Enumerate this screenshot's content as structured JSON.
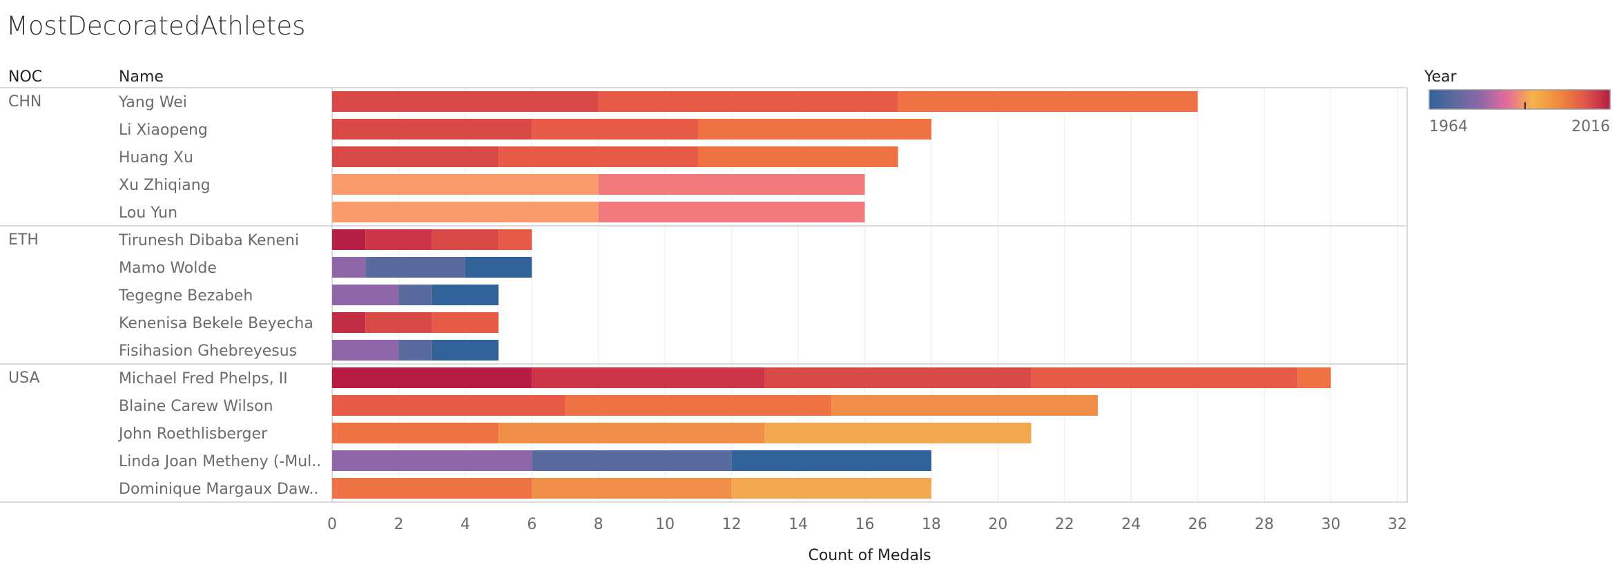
{
  "title": "MostDecoratedAthletes",
  "chart_data": {
    "type": "bar",
    "orientation": "horizontal",
    "stacked": true,
    "row_headers": [
      "NOC",
      "Name"
    ],
    "xlabel": "Count of Medals",
    "xlim": [
      0,
      32
    ],
    "xticks": [
      0,
      2,
      4,
      6,
      8,
      10,
      12,
      14,
      16,
      18,
      20,
      22,
      24,
      26,
      28,
      30,
      32
    ],
    "grid": true,
    "color_legend": {
      "title": "Year",
      "min_label": "1964",
      "max_label": "2016",
      "placement": "top-right",
      "colors": [
        "#31639a",
        "#5b6a9e",
        "#8f67a8",
        "#e56a9a",
        "#f6b34a",
        "#f08a3e",
        "#e0584a",
        "#b51c44"
      ]
    },
    "groups": [
      {
        "noc": "CHN",
        "athletes": [
          {
            "name": "Yang Wei",
            "segments": [
              {
                "value": 8,
                "color": "#d94a47"
              },
              {
                "value": 9,
                "color": "#e65a47"
              },
              {
                "value": 9,
                "color": "#ef7245"
              }
            ]
          },
          {
            "name": "Li Xiaopeng",
            "segments": [
              {
                "value": 6,
                "color": "#d94a47"
              },
              {
                "value": 5,
                "color": "#e65a47"
              },
              {
                "value": 7,
                "color": "#ef7245"
              }
            ]
          },
          {
            "name": "Huang Xu",
            "segments": [
              {
                "value": 5,
                "color": "#d94a47"
              },
              {
                "value": 6,
                "color": "#e65a47"
              },
              {
                "value": 6,
                "color": "#ef7245"
              }
            ]
          },
          {
            "name": "Xu Zhiqiang",
            "segments": [
              {
                "value": 8,
                "color": "#fb9a6b"
              },
              {
                "value": 8,
                "color": "#f27a7d"
              }
            ]
          },
          {
            "name": "Lou Yun",
            "segments": [
              {
                "value": 8,
                "color": "#fb9a6b"
              },
              {
                "value": 8,
                "color": "#f27a7d"
              }
            ]
          }
        ]
      },
      {
        "noc": "ETH",
        "athletes": [
          {
            "name": "Tirunesh Dibaba Keneni",
            "segments": [
              {
                "value": 1,
                "color": "#b81f44"
              },
              {
                "value": 2,
                "color": "#cb3546"
              },
              {
                "value": 2,
                "color": "#d94a47"
              },
              {
                "value": 1,
                "color": "#e65a47"
              }
            ]
          },
          {
            "name": "Mamo Wolde",
            "segments": [
              {
                "value": 1,
                "color": "#8f67a8"
              },
              {
                "value": 3,
                "color": "#5b6a9e"
              },
              {
                "value": 2,
                "color": "#31639a"
              }
            ]
          },
          {
            "name": "Tegegne Bezabeh",
            "segments": [
              {
                "value": 2,
                "color": "#8f67a8"
              },
              {
                "value": 1,
                "color": "#5b6a9e"
              },
              {
                "value": 2,
                "color": "#31639a"
              }
            ]
          },
          {
            "name": "Kenenisa Bekele Beyecha",
            "segments": [
              {
                "value": 1,
                "color": "#c32c45"
              },
              {
                "value": 2,
                "color": "#d94a47"
              },
              {
                "value": 2,
                "color": "#e65a47"
              }
            ]
          },
          {
            "name": "Fisihasion Ghebreyesus",
            "segments": [
              {
                "value": 2,
                "color": "#8f67a8"
              },
              {
                "value": 1,
                "color": "#5b6a9e"
              },
              {
                "value": 2,
                "color": "#31639a"
              }
            ]
          }
        ]
      },
      {
        "noc": "USA",
        "athletes": [
          {
            "name": "Michael Fred Phelps, II",
            "segments": [
              {
                "value": 6,
                "color": "#b81c44"
              },
              {
                "value": 7,
                "color": "#cb3546"
              },
              {
                "value": 8,
                "color": "#d94a47"
              },
              {
                "value": 8,
                "color": "#e65a47"
              },
              {
                "value": 1,
                "color": "#ef7245"
              }
            ]
          },
          {
            "name": "Blaine Carew Wilson",
            "segments": [
              {
                "value": 7,
                "color": "#e65a47"
              },
              {
                "value": 8,
                "color": "#ef7245"
              },
              {
                "value": 8,
                "color": "#f08e47"
              }
            ]
          },
          {
            "name": "John Roethlisberger",
            "segments": [
              {
                "value": 5,
                "color": "#ef7245"
              },
              {
                "value": 8,
                "color": "#f08e47"
              },
              {
                "value": 8,
                "color": "#f3a84f"
              }
            ]
          },
          {
            "name": "Linda Joan Metheny (-Mul..",
            "segments": [
              {
                "value": 6,
                "color": "#8f67a8"
              },
              {
                "value": 6,
                "color": "#5b6a9e"
              },
              {
                "value": 6,
                "color": "#31639a"
              }
            ]
          },
          {
            "name": "Dominique Margaux Daw..",
            "segments": [
              {
                "value": 6,
                "color": "#ef7245"
              },
              {
                "value": 6,
                "color": "#f08e47"
              },
              {
                "value": 6,
                "color": "#f3a84f"
              }
            ]
          }
        ]
      }
    ]
  }
}
